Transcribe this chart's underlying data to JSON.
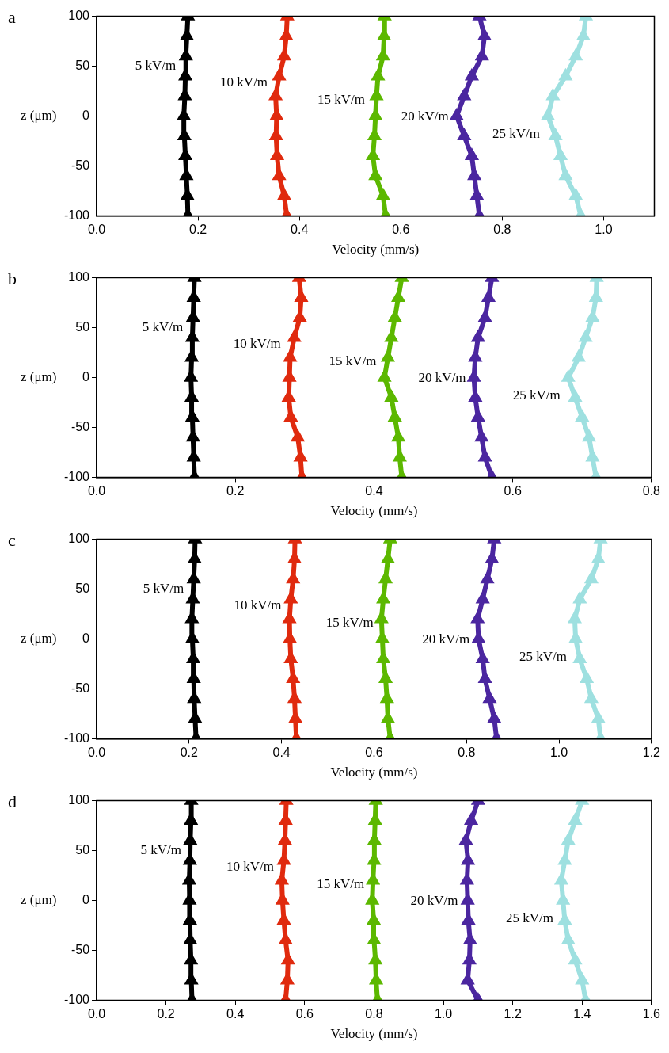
{
  "chart_data": [
    {
      "type": "line",
      "title": "a",
      "xlabel": "Velocity (mm/s)",
      "ylabel": "z (μm)",
      "marker": "triangle",
      "xlim": [
        0,
        1.1
      ],
      "xticks": [
        {
          "value": 0,
          "label": "0.0"
        },
        {
          "value": 0.2,
          "label": "0.2"
        },
        {
          "value": 0.4,
          "label": "0.4"
        },
        {
          "value": 0.6,
          "label": "0.6"
        },
        {
          "value": 0.8,
          "label": "0.8"
        },
        {
          "value": 1.0,
          "label": "1.0"
        }
      ],
      "ylim": [
        -100,
        100
      ],
      "yticks": [
        -100,
        -50,
        0,
        50,
        100
      ],
      "series": [
        {
          "name": "5 kV/m",
          "color": "#000000",
          "x": [
            0.18,
            0.179,
            0.177,
            0.175,
            0.173,
            0.172,
            0.174,
            0.175,
            0.176,
            0.178,
            0.18
          ],
          "values": [
            -100,
            -80,
            -60,
            -40,
            -20,
            0,
            20,
            40,
            60,
            80,
            100
          ]
        },
        {
          "name": "10 kV/m",
          "color": "#e02a0e",
          "x": [
            0.375,
            0.37,
            0.36,
            0.356,
            0.354,
            0.355,
            0.353,
            0.36,
            0.37,
            0.374,
            0.376
          ],
          "values": [
            -100,
            -80,
            -60,
            -40,
            -20,
            0,
            20,
            40,
            60,
            80,
            100
          ]
        },
        {
          "name": "15 kV/m",
          "color": "#5cb800",
          "x": [
            0.57,
            0.565,
            0.55,
            0.545,
            0.548,
            0.55,
            0.552,
            0.555,
            0.565,
            0.567,
            0.568
          ],
          "values": [
            -100,
            -80,
            -60,
            -40,
            -20,
            0,
            20,
            40,
            60,
            80,
            100
          ]
        },
        {
          "name": "20 kV/m",
          "color": "#4b26a0",
          "x": [
            0.755,
            0.75,
            0.745,
            0.74,
            0.725,
            0.71,
            0.725,
            0.74,
            0.76,
            0.765,
            0.755
          ],
          "values": [
            -100,
            -80,
            -60,
            -40,
            -20,
            0,
            20,
            40,
            60,
            80,
            100
          ]
        },
        {
          "name": "25 kV/m",
          "color": "#9ee0e0",
          "x": [
            0.955,
            0.945,
            0.925,
            0.915,
            0.905,
            0.89,
            0.9,
            0.925,
            0.945,
            0.96,
            0.965
          ],
          "values": [
            -100,
            -80,
            -60,
            -40,
            -20,
            0,
            20,
            40,
            60,
            80,
            100
          ]
        }
      ]
    },
    {
      "type": "line",
      "title": "b",
      "xlabel": "Velocity (mm/s)",
      "ylabel": "z (μm)",
      "marker": "triangle",
      "xlim": [
        0,
        0.8
      ],
      "xticks": [
        {
          "value": 0,
          "label": "0.0"
        },
        {
          "value": 0.2,
          "label": "0.2"
        },
        {
          "value": 0.4,
          "label": "0.4"
        },
        {
          "value": 0.6,
          "label": "0.6"
        },
        {
          "value": 0.8,
          "label": "0.8"
        }
      ],
      "ylim": [
        -100,
        100
      ],
      "yticks": [
        -100,
        -50,
        0,
        50,
        100
      ],
      "series": [
        {
          "name": "5 kV/m",
          "color": "#000000",
          "x": [
            0.141,
            0.14,
            0.139,
            0.138,
            0.137,
            0.136,
            0.137,
            0.138,
            0.139,
            0.14,
            0.141
          ],
          "values": [
            -100,
            -80,
            -60,
            -40,
            -20,
            0,
            20,
            40,
            60,
            80,
            100
          ]
        },
        {
          "name": "10 kV/m",
          "color": "#e02a0e",
          "x": [
            0.296,
            0.294,
            0.29,
            0.28,
            0.277,
            0.278,
            0.279,
            0.285,
            0.293,
            0.295,
            0.292
          ],
          "values": [
            -100,
            -80,
            -60,
            -40,
            -20,
            0,
            20,
            40,
            60,
            80,
            100
          ]
        },
        {
          "name": "15 kV/m",
          "color": "#5cb800",
          "x": [
            0.44,
            0.437,
            0.435,
            0.43,
            0.425,
            0.415,
            0.42,
            0.425,
            0.43,
            0.435,
            0.44
          ],
          "values": [
            -100,
            -80,
            -60,
            -40,
            -20,
            0,
            20,
            40,
            60,
            80,
            100
          ]
        },
        {
          "name": "20 kV/m",
          "color": "#4b26a0",
          "x": [
            0.57,
            0.56,
            0.555,
            0.55,
            0.546,
            0.544,
            0.546,
            0.55,
            0.56,
            0.565,
            0.57
          ],
          "values": [
            -100,
            -80,
            -60,
            -40,
            -20,
            0,
            20,
            40,
            60,
            80,
            100
          ]
        },
        {
          "name": "25 kV/m",
          "color": "#9ee0e0",
          "x": [
            0.72,
            0.715,
            0.71,
            0.7,
            0.69,
            0.68,
            0.695,
            0.705,
            0.715,
            0.72,
            0.721
          ],
          "values": [
            -100,
            -80,
            -60,
            -40,
            -20,
            0,
            20,
            40,
            60,
            80,
            100
          ]
        }
      ]
    },
    {
      "type": "line",
      "title": "c",
      "xlabel": "Velocity (mm/s)",
      "ylabel": "z (μm)",
      "marker": "triangle",
      "xlim": [
        0,
        1.2
      ],
      "xticks": [
        {
          "value": 0,
          "label": "0.0"
        },
        {
          "value": 0.2,
          "label": "0.2"
        },
        {
          "value": 0.4,
          "label": "0.4"
        },
        {
          "value": 0.6,
          "label": "0.6"
        },
        {
          "value": 0.8,
          "label": "0.8"
        },
        {
          "value": 1.0,
          "label": "1.0"
        },
        {
          "value": 1.2,
          "label": "1.2"
        }
      ],
      "ylim": [
        -100,
        100
      ],
      "yticks": [
        -100,
        -50,
        0,
        50,
        100
      ],
      "series": [
        {
          "name": "5 kV/m",
          "color": "#000000",
          "x": [
            0.215,
            0.213,
            0.211,
            0.21,
            0.209,
            0.207,
            0.206,
            0.208,
            0.21,
            0.212,
            0.213
          ],
          "values": [
            -100,
            -80,
            -60,
            -40,
            -20,
            0,
            20,
            40,
            60,
            80,
            100
          ]
        },
        {
          "name": "10 kV/m",
          "color": "#e02a0e",
          "x": [
            0.432,
            0.43,
            0.428,
            0.425,
            0.42,
            0.418,
            0.417,
            0.42,
            0.425,
            0.428,
            0.429
          ],
          "values": [
            -100,
            -80,
            -60,
            -40,
            -20,
            0,
            20,
            40,
            60,
            80,
            100
          ]
        },
        {
          "name": "15 kV/m",
          "color": "#5cb800",
          "x": [
            0.635,
            0.63,
            0.628,
            0.625,
            0.62,
            0.618,
            0.616,
            0.62,
            0.625,
            0.63,
            0.635
          ],
          "values": [
            -100,
            -80,
            -60,
            -40,
            -20,
            0,
            20,
            40,
            60,
            80,
            100
          ]
        },
        {
          "name": "20 kV/m",
          "color": "#4b26a0",
          "x": [
            0.865,
            0.86,
            0.85,
            0.84,
            0.835,
            0.826,
            0.824,
            0.835,
            0.845,
            0.855,
            0.86
          ],
          "values": [
            -100,
            -80,
            -60,
            -40,
            -20,
            0,
            20,
            40,
            60,
            80,
            100
          ]
        },
        {
          "name": "25 kV/m",
          "color": "#9ee0e0",
          "x": [
            1.09,
            1.085,
            1.07,
            1.06,
            1.045,
            1.036,
            1.034,
            1.045,
            1.07,
            1.085,
            1.09
          ],
          "values": [
            -100,
            -80,
            -60,
            -40,
            -20,
            0,
            20,
            40,
            60,
            80,
            100
          ]
        }
      ]
    },
    {
      "type": "line",
      "title": "d",
      "xlabel": "Velocity (mm/s)",
      "ylabel": "z (μm)",
      "marker": "triangle",
      "xlim": [
        0,
        1.6
      ],
      "xticks": [
        {
          "value": 0,
          "label": "0.0"
        },
        {
          "value": 0.2,
          "label": "0.2"
        },
        {
          "value": 0.4,
          "label": "0.4"
        },
        {
          "value": 0.6,
          "label": "0.6"
        },
        {
          "value": 0.8,
          "label": "0.8"
        },
        {
          "value": 1.0,
          "label": "1.0"
        },
        {
          "value": 1.2,
          "label": "1.2"
        },
        {
          "value": 1.4,
          "label": "1.4"
        },
        {
          "value": 1.6,
          "label": "1.6"
        }
      ],
      "ylim": [
        -100,
        100
      ],
      "yticks": [
        -100,
        -50,
        0,
        50,
        100
      ],
      "series": [
        {
          "name": "5 kV/m",
          "color": "#000000",
          "x": [
            0.275,
            0.273,
            0.272,
            0.27,
            0.269,
            0.268,
            0.267,
            0.269,
            0.27,
            0.272,
            0.273
          ],
          "values": [
            -100,
            -80,
            -60,
            -40,
            -20,
            0,
            20,
            40,
            60,
            80,
            100
          ]
        },
        {
          "name": "10 kV/m",
          "color": "#e02a0e",
          "x": [
            0.545,
            0.55,
            0.552,
            0.545,
            0.54,
            0.536,
            0.534,
            0.54,
            0.543,
            0.545,
            0.547
          ],
          "values": [
            -100,
            -80,
            -60,
            -40,
            -20,
            0,
            20,
            40,
            60,
            80,
            100
          ]
        },
        {
          "name": "15 kV/m",
          "color": "#5cb800",
          "x": [
            0.81,
            0.806,
            0.804,
            0.8,
            0.799,
            0.795,
            0.797,
            0.8,
            0.801,
            0.803,
            0.805
          ],
          "values": [
            -100,
            -80,
            -60,
            -40,
            -20,
            0,
            20,
            40,
            60,
            80,
            100
          ]
        },
        {
          "name": "20 kV/m",
          "color": "#4b26a0",
          "x": [
            1.1,
            1.07,
            1.075,
            1.077,
            1.072,
            1.07,
            1.068,
            1.071,
            1.065,
            1.08,
            1.1
          ],
          "values": [
            -100,
            -80,
            -60,
            -40,
            -20,
            0,
            20,
            40,
            60,
            80,
            100
          ]
        },
        {
          "name": "25 kV/m",
          "color": "#9ee0e0",
          "x": [
            1.41,
            1.4,
            1.38,
            1.36,
            1.35,
            1.345,
            1.34,
            1.35,
            1.36,
            1.38,
            1.4
          ],
          "values": [
            -100,
            -80,
            -60,
            -40,
            -20,
            0,
            20,
            40,
            60,
            80,
            100
          ]
        }
      ]
    }
  ]
}
